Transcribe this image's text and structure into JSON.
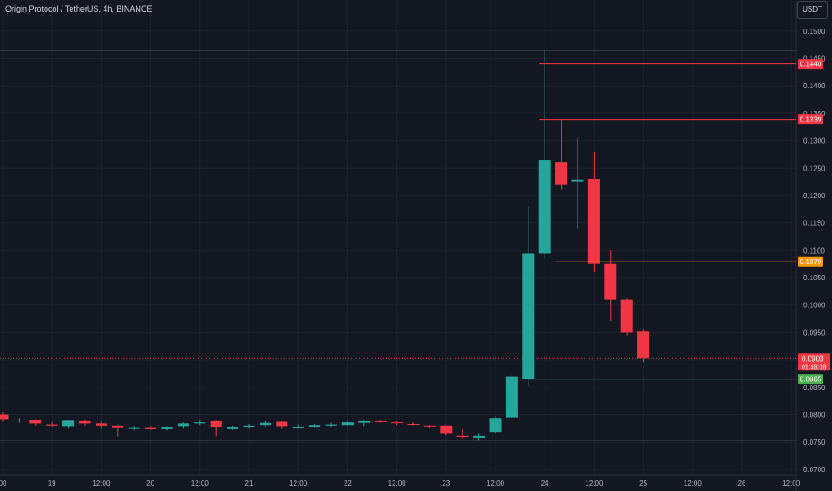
{
  "header": {
    "title": "Origin Protocol / TetherUS, 4h, BINANCE",
    "currency": "USDT"
  },
  "colors": {
    "background": "#131722",
    "grid": "#1e222d",
    "axis_text": "#b2b5be",
    "up": "#26a69a",
    "down": "#f23645",
    "resistance_line": "#f23645",
    "support_line": "#ff9800",
    "green_line": "#4caf50",
    "last_price": "#f23645"
  },
  "chart_data": {
    "type": "candlestick",
    "title": "Origin Protocol / TetherUS, 4h, BINANCE",
    "ylim": [
      0.068,
      0.152
    ],
    "y_ticks": [
      "0.1500",
      "0.1450",
      "0.1400",
      "0.1350",
      "0.1300",
      "0.1250",
      "0.1200",
      "0.1150",
      "0.1100",
      "0.1050",
      "0.1000",
      "0.0950",
      "0.0900",
      "0.0850",
      "0.0800",
      "0.0750",
      "0.0700"
    ],
    "x_ticks": [
      {
        "index": 0,
        "label": "00"
      },
      {
        "index": 3,
        "label": "19"
      },
      {
        "index": 6,
        "label": "12:00"
      },
      {
        "index": 9,
        "label": "20"
      },
      {
        "index": 12,
        "label": "12:00"
      },
      {
        "index": 15,
        "label": "21"
      },
      {
        "index": 18,
        "label": "12:00"
      },
      {
        "index": 21,
        "label": "22"
      },
      {
        "index": 24,
        "label": "12:00"
      },
      {
        "index": 27,
        "label": "23"
      },
      {
        "index": 30,
        "label": "12:00"
      },
      {
        "index": 33,
        "label": "24"
      },
      {
        "index": 36,
        "label": "12:00"
      },
      {
        "index": 39,
        "label": "25"
      },
      {
        "index": 42,
        "label": "12:00"
      },
      {
        "index": 45,
        "label": "26"
      },
      {
        "index": 48,
        "label": "12:00"
      }
    ],
    "candles": [
      {
        "o": 0.08,
        "h": 0.0805,
        "l": 0.0787,
        "c": 0.0792
      },
      {
        "o": 0.079,
        "h": 0.0794,
        "l": 0.0785,
        "c": 0.0791
      },
      {
        "o": 0.079,
        "h": 0.0792,
        "l": 0.078,
        "c": 0.0784
      },
      {
        "o": 0.0782,
        "h": 0.0787,
        "l": 0.0778,
        "c": 0.078
      },
      {
        "o": 0.0779,
        "h": 0.0791,
        "l": 0.0776,
        "c": 0.0789
      },
      {
        "o": 0.0788,
        "h": 0.0792,
        "l": 0.078,
        "c": 0.0784
      },
      {
        "o": 0.0784,
        "h": 0.0787,
        "l": 0.0776,
        "c": 0.078
      },
      {
        "o": 0.078,
        "h": 0.0782,
        "l": 0.0761,
        "c": 0.0777
      },
      {
        "o": 0.0776,
        "h": 0.0779,
        "l": 0.0771,
        "c": 0.0777
      },
      {
        "o": 0.0777,
        "h": 0.0779,
        "l": 0.0772,
        "c": 0.0774
      },
      {
        "o": 0.0774,
        "h": 0.0779,
        "l": 0.0771,
        "c": 0.0778
      },
      {
        "o": 0.0779,
        "h": 0.0786,
        "l": 0.0776,
        "c": 0.0784
      },
      {
        "o": 0.0784,
        "h": 0.0789,
        "l": 0.0781,
        "c": 0.0786
      },
      {
        "o": 0.0788,
        "h": 0.079,
        "l": 0.0761,
        "c": 0.0778
      },
      {
        "o": 0.0775,
        "h": 0.078,
        "l": 0.0772,
        "c": 0.0778
      },
      {
        "o": 0.0778,
        "h": 0.0783,
        "l": 0.0776,
        "c": 0.078
      },
      {
        "o": 0.0781,
        "h": 0.0788,
        "l": 0.0779,
        "c": 0.0785
      },
      {
        "o": 0.0787,
        "h": 0.0788,
        "l": 0.0775,
        "c": 0.0779
      },
      {
        "o": 0.0778,
        "h": 0.0782,
        "l": 0.0776,
        "c": 0.0778
      },
      {
        "o": 0.0778,
        "h": 0.0783,
        "l": 0.0777,
        "c": 0.0781
      },
      {
        "o": 0.078,
        "h": 0.0785,
        "l": 0.0778,
        "c": 0.0782
      },
      {
        "o": 0.0781,
        "h": 0.0787,
        "l": 0.078,
        "c": 0.0786
      },
      {
        "o": 0.0785,
        "h": 0.0789,
        "l": 0.0779,
        "c": 0.0788
      },
      {
        "o": 0.0788,
        "h": 0.0789,
        "l": 0.0785,
        "c": 0.0787
      },
      {
        "o": 0.0786,
        "h": 0.0788,
        "l": 0.0781,
        "c": 0.0785
      },
      {
        "o": 0.0783,
        "h": 0.0786,
        "l": 0.078,
        "c": 0.0782
      },
      {
        "o": 0.078,
        "h": 0.0781,
        "l": 0.0777,
        "c": 0.0779
      },
      {
        "o": 0.078,
        "h": 0.0782,
        "l": 0.0763,
        "c": 0.0766
      },
      {
        "o": 0.0762,
        "h": 0.0774,
        "l": 0.0755,
        "c": 0.0759
      },
      {
        "o": 0.0757,
        "h": 0.0766,
        "l": 0.0753,
        "c": 0.0762
      },
      {
        "o": 0.0768,
        "h": 0.0797,
        "l": 0.0766,
        "c": 0.0794
      },
      {
        "o": 0.0795,
        "h": 0.0875,
        "l": 0.0792,
        "c": 0.087
      },
      {
        "o": 0.0865,
        "h": 0.118,
        "l": 0.085,
        "c": 0.1095
      },
      {
        "o": 0.1095,
        "h": 0.1465,
        "l": 0.1085,
        "c": 0.1265
      },
      {
        "o": 0.126,
        "h": 0.134,
        "l": 0.121,
        "c": 0.122
      },
      {
        "o": 0.1225,
        "h": 0.1305,
        "l": 0.114,
        "c": 0.1228
      },
      {
        "o": 0.123,
        "h": 0.128,
        "l": 0.106,
        "c": 0.1075
      },
      {
        "o": 0.1075,
        "h": 0.11,
        "l": 0.097,
        "c": 0.101
      },
      {
        "o": 0.101,
        "h": 0.1012,
        "l": 0.0945,
        "c": 0.095
      },
      {
        "o": 0.0952,
        "h": 0.0955,
        "l": 0.0895,
        "c": 0.0903
      }
    ],
    "horizontal_levels": [
      {
        "price": 0.144,
        "label": "0.1440",
        "color": "#f23645",
        "from_index": 33
      },
      {
        "price": 0.1339,
        "label": "0.1339",
        "color": "#f23645",
        "from_index": 33
      },
      {
        "price": 0.1079,
        "label": "0.1079",
        "color": "#ff9800",
        "from_index": 34
      },
      {
        "price": 0.0865,
        "label": "0.0865",
        "color": "#4caf50",
        "from_index": 32
      }
    ],
    "last_price": {
      "price": 0.0903,
      "label": "0.0903",
      "countdown": "01:48:08",
      "color": "#f23645"
    }
  }
}
